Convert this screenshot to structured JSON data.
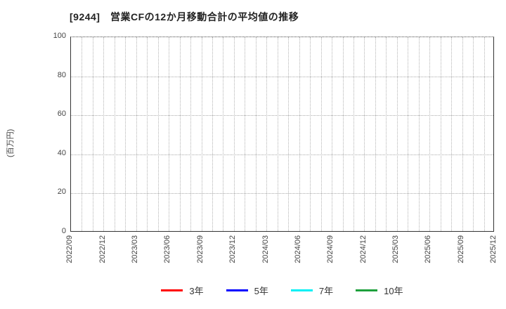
{
  "chart_data": {
    "type": "line",
    "title": "[9244]　営業CFの12か月移動合計の平均値の推移",
    "ylabel": "(百万円)",
    "xlabel": "",
    "ylim": [
      0,
      100
    ],
    "yticks": [
      0,
      20,
      40,
      60,
      80,
      100
    ],
    "x_tick_labels": [
      "2022/09",
      "2022/12",
      "2023/03",
      "2023/06",
      "2023/09",
      "2023/12",
      "2024/03",
      "2024/06",
      "2024/09",
      "2024/12",
      "2025/03",
      "2025/06",
      "2025/09",
      "2025/12"
    ],
    "x_minor_gridline_interval_months": 1,
    "grid": true,
    "grid_style": "dotted",
    "legend_position": "bottom-center",
    "plot_area_empty": true,
    "series": [
      {
        "name": "3年",
        "color": "#ff0000",
        "values": []
      },
      {
        "name": "5年",
        "color": "#0000ff",
        "values": []
      },
      {
        "name": "7年",
        "color": "#00f0f5",
        "values": []
      },
      {
        "name": "10年",
        "color": "#1ea03c",
        "values": []
      }
    ]
  }
}
